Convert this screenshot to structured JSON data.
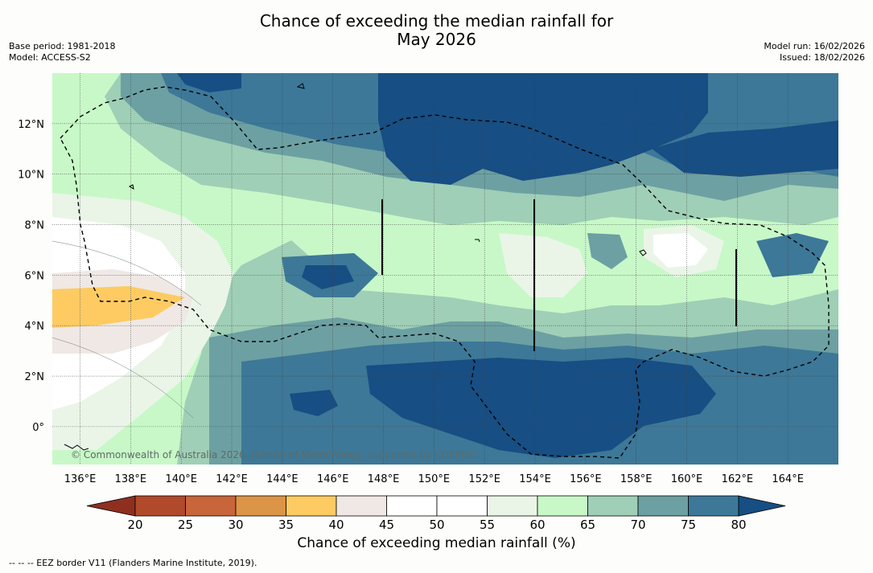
{
  "header": {
    "title_line1": "Chance of exceeding the median rainfall for",
    "title_line2": "May 2026",
    "base_period": "Base period: 1981-2018",
    "model": "Model: ACCESS-S2",
    "model_run": "Model run: 16/02/2026",
    "issued": "Issued: 18/02/2026"
  },
  "map": {
    "copyright": "© Commonwealth of Australia 2026, Bureau of Meteorology, supported by COSPPac"
  },
  "legend": {
    "eez_note": "--  --  -- EEZ border V11 (Flanders Marine Institute, 2019)."
  },
  "chart_data": {
    "type": "heatmap",
    "title": "Chance of exceeding the median rainfall for May 2026",
    "xlabel": "",
    "ylabel": "",
    "x_ticks": [
      "136°E",
      "138°E",
      "140°E",
      "142°E",
      "144°E",
      "146°E",
      "148°E",
      "150°E",
      "152°E",
      "154°E",
      "156°E",
      "158°E",
      "160°E",
      "162°E",
      "164°E"
    ],
    "x_tick_values": [
      136,
      138,
      140,
      142,
      144,
      146,
      148,
      150,
      152,
      154,
      156,
      158,
      160,
      162,
      164
    ],
    "y_ticks": [
      "0°",
      "2°N",
      "4°N",
      "6°N",
      "8°N",
      "10°N",
      "12°N"
    ],
    "y_tick_values": [
      0,
      2,
      4,
      6,
      8,
      10,
      12
    ],
    "xlim": [
      134.9,
      166.0
    ],
    "ylim": [
      -1.5,
      14.0
    ],
    "grid": true,
    "colorbar": {
      "label": "Chance of exceeding median rainfall (%)",
      "ticks": [
        20,
        25,
        30,
        35,
        40,
        45,
        50,
        55,
        60,
        65,
        70,
        75,
        80
      ],
      "colors": [
        "#b04a2a",
        "#c8653a",
        "#dc9447",
        "#fdcb62",
        "#efe8e4",
        "#ffffff",
        "#ffffff",
        "#eaf5e8",
        "#c8f8c8",
        "#9fcfb6",
        "#6da0a2",
        "#3d7898",
        "#174e83"
      ],
      "under_color": "#8f2f20",
      "over_color": "#174e83"
    },
    "regions": [
      {
        "name": "strong-wet-north",
        "value": 80,
        "lon": [
          151,
          160
        ],
        "lat": [
          10,
          14
        ]
      },
      {
        "name": "strong-wet-south",
        "value": 80,
        "lon": [
          148,
          161
        ],
        "lat": [
          -1.2,
          3.2
        ]
      },
      {
        "name": "dry-west",
        "value": 35,
        "lon": [
          134.9,
          140
        ],
        "lat": [
          4.4,
          5.6
        ]
      },
      {
        "name": "neutral-east-pocket",
        "value": 50,
        "lon": [
          159,
          161
        ],
        "lat": [
          6.2,
          7.8
        ]
      }
    ]
  }
}
